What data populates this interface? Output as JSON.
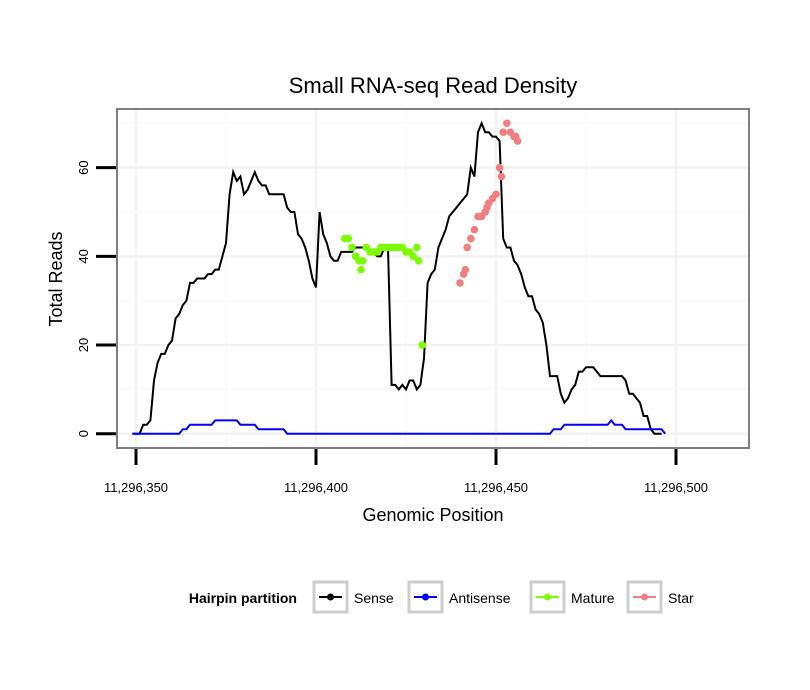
{
  "chart_data": {
    "type": "line",
    "title": "Small RNA-seq Read Density",
    "xlabel": "Genomic Position",
    "ylabel": "Total Reads",
    "xlim": [
      11296345,
      11296520
    ],
    "ylim": [
      -3,
      73
    ],
    "x_ticks": [
      11296350,
      11296400,
      11296450,
      11296500
    ],
    "x_tick_labels": [
      "11,296,350",
      "11,296,400",
      "11,296,450",
      "11,296,500"
    ],
    "y_ticks": [
      0,
      20,
      40,
      60
    ],
    "y_tick_labels": [
      "0",
      "20",
      "40",
      "60"
    ],
    "grid": true,
    "legend": {
      "title": "Hairpin partition",
      "position": "bottom",
      "entries": [
        {
          "name": "Sense",
          "color": "#000000"
        },
        {
          "name": "Antisense",
          "color": "#0000ff"
        },
        {
          "name": "Mature",
          "color": "#7cfc00"
        },
        {
          "name": "Star",
          "color": "#f08080"
        }
      ]
    },
    "series": [
      {
        "name": "Sense",
        "color": "#000000",
        "style": "line",
        "points": [
          [
            11296349,
            0
          ],
          [
            11296351,
            0
          ],
          [
            11296352,
            2
          ],
          [
            11296353,
            2
          ],
          [
            11296354,
            3
          ],
          [
            11296355,
            12
          ],
          [
            11296356,
            16
          ],
          [
            11296357,
            18
          ],
          [
            11296358,
            18
          ],
          [
            11296359,
            20
          ],
          [
            11296360,
            21
          ],
          [
            11296361,
            26
          ],
          [
            11296362,
            27
          ],
          [
            11296363,
            29
          ],
          [
            11296364,
            30
          ],
          [
            11296365,
            34
          ],
          [
            11296366,
            34
          ],
          [
            11296367,
            35
          ],
          [
            11296368,
            35
          ],
          [
            11296369,
            35
          ],
          [
            11296370,
            36
          ],
          [
            11296371,
            36
          ],
          [
            11296372,
            37
          ],
          [
            11296373,
            37
          ],
          [
            11296374,
            40
          ],
          [
            11296375,
            43
          ],
          [
            11296376,
            54
          ],
          [
            11296377,
            59
          ],
          [
            11296378,
            57
          ],
          [
            11296379,
            58
          ],
          [
            11296380,
            54
          ],
          [
            11296381,
            55
          ],
          [
            11296382,
            57
          ],
          [
            11296383,
            59
          ],
          [
            11296384,
            57
          ],
          [
            11296385,
            56
          ],
          [
            11296386,
            56
          ],
          [
            11296387,
            54
          ],
          [
            11296388,
            54
          ],
          [
            11296389,
            54
          ],
          [
            11296390,
            54
          ],
          [
            11296391,
            54
          ],
          [
            11296392,
            51
          ],
          [
            11296393,
            50
          ],
          [
            11296394,
            50
          ],
          [
            11296395,
            45
          ],
          [
            11296396,
            44
          ],
          [
            11296397,
            42
          ],
          [
            11296398,
            39
          ],
          [
            11296399,
            35
          ],
          [
            11296400,
            33
          ],
          [
            11296401,
            50
          ],
          [
            11296402,
            45
          ],
          [
            11296403,
            43
          ],
          [
            11296404,
            40
          ],
          [
            11296405,
            39
          ],
          [
            11296406,
            39
          ],
          [
            11296407,
            41
          ],
          [
            11296408,
            41
          ],
          [
            11296409,
            41
          ],
          [
            11296410,
            41
          ],
          [
            11296411,
            42
          ],
          [
            11296412,
            42
          ],
          [
            11296413,
            42
          ],
          [
            11296414,
            42
          ],
          [
            11296415,
            41
          ],
          [
            11296416,
            41
          ],
          [
            11296417,
            40
          ],
          [
            11296418,
            40
          ],
          [
            11296419,
            42
          ],
          [
            11296420,
            42
          ],
          [
            11296421,
            11
          ],
          [
            11296422,
            11
          ],
          [
            11296423,
            10
          ],
          [
            11296424,
            11
          ],
          [
            11296425,
            10
          ],
          [
            11296426,
            12
          ],
          [
            11296427,
            12
          ],
          [
            11296428,
            10
          ],
          [
            11296429,
            11
          ],
          [
            11296430,
            17
          ],
          [
            11296431,
            34
          ],
          [
            11296432,
            36
          ],
          [
            11296433,
            37
          ],
          [
            11296434,
            42
          ],
          [
            11296435,
            44
          ],
          [
            11296436,
            46
          ],
          [
            11296437,
            49
          ],
          [
            11296438,
            50
          ],
          [
            11296439,
            51
          ],
          [
            11296440,
            52
          ],
          [
            11296441,
            53
          ],
          [
            11296442,
            54
          ],
          [
            11296443,
            60
          ],
          [
            11296444,
            58
          ],
          [
            11296445,
            68
          ],
          [
            11296446,
            70
          ],
          [
            11296447,
            68
          ],
          [
            11296448,
            68
          ],
          [
            11296449,
            67
          ],
          [
            11296450,
            67
          ],
          [
            11296451,
            66
          ],
          [
            11296452,
            44
          ],
          [
            11296453,
            42
          ],
          [
            11296454,
            42
          ],
          [
            11296455,
            39
          ],
          [
            11296456,
            38
          ],
          [
            11296457,
            36
          ],
          [
            11296458,
            33
          ],
          [
            11296459,
            31
          ],
          [
            11296460,
            31
          ],
          [
            11296461,
            28
          ],
          [
            11296462,
            27
          ],
          [
            11296463,
            25
          ],
          [
            11296464,
            20
          ],
          [
            11296465,
            13
          ],
          [
            11296466,
            13
          ],
          [
            11296467,
            13
          ],
          [
            11296468,
            9
          ],
          [
            11296469,
            7
          ],
          [
            11296470,
            8
          ],
          [
            11296471,
            10
          ],
          [
            11296472,
            11
          ],
          [
            11296473,
            14
          ],
          [
            11296474,
            14
          ],
          [
            11296475,
            15
          ],
          [
            11296476,
            15
          ],
          [
            11296477,
            15
          ],
          [
            11296478,
            14
          ],
          [
            11296479,
            13
          ],
          [
            11296480,
            13
          ],
          [
            11296481,
            13
          ],
          [
            11296482,
            13
          ],
          [
            11296483,
            13
          ],
          [
            11296484,
            13
          ],
          [
            11296485,
            13
          ],
          [
            11296486,
            12
          ],
          [
            11296487,
            9
          ],
          [
            11296488,
            9
          ],
          [
            11296489,
            8
          ],
          [
            11296490,
            7
          ],
          [
            11296491,
            4
          ],
          [
            11296492,
            4
          ],
          [
            11296493,
            1
          ],
          [
            11296494,
            0
          ],
          [
            11296496,
            0
          ]
        ]
      },
      {
        "name": "Antisense",
        "color": "#0000ff",
        "style": "line",
        "points": [
          [
            11296349,
            0
          ],
          [
            11296362,
            0
          ],
          [
            11296363,
            1
          ],
          [
            11296364,
            1
          ],
          [
            11296365,
            2
          ],
          [
            11296371,
            2
          ],
          [
            11296372,
            3
          ],
          [
            11296378,
            3
          ],
          [
            11296379,
            2
          ],
          [
            11296383,
            2
          ],
          [
            11296384,
            1
          ],
          [
            11296391,
            1
          ],
          [
            11296392,
            0
          ],
          [
            11296465,
            0
          ],
          [
            11296466,
            1
          ],
          [
            11296468,
            1
          ],
          [
            11296469,
            2
          ],
          [
            11296478,
            2
          ],
          [
            11296479,
            2
          ],
          [
            11296481,
            2
          ],
          [
            11296482,
            3
          ],
          [
            11296483,
            2
          ],
          [
            11296485,
            2
          ],
          [
            11296486,
            1
          ],
          [
            11296496,
            1
          ],
          [
            11296497,
            0
          ]
        ]
      },
      {
        "name": "Mature",
        "color": "#7cfc00",
        "style": "points",
        "points": [
          [
            11296408,
            44
          ],
          [
            11296409,
            44
          ],
          [
            11296410,
            42
          ],
          [
            11296411,
            40
          ],
          [
            11296412,
            39
          ],
          [
            11296412.5,
            37
          ],
          [
            11296413,
            39
          ],
          [
            11296414,
            42
          ],
          [
            11296415,
            41
          ],
          [
            11296416,
            41
          ],
          [
            11296417,
            41
          ],
          [
            11296418,
            42
          ],
          [
            11296419,
            42
          ],
          [
            11296420,
            42
          ],
          [
            11296421,
            42
          ],
          [
            11296422,
            42
          ],
          [
            11296423,
            42
          ],
          [
            11296424,
            42
          ],
          [
            11296425,
            41
          ],
          [
            11296426,
            41
          ],
          [
            11296427,
            40
          ],
          [
            11296428,
            42
          ],
          [
            11296428.5,
            39
          ],
          [
            11296429.5,
            20
          ]
        ]
      },
      {
        "name": "Star",
        "color": "#f08080",
        "style": "points",
        "points": [
          [
            11296440,
            34
          ],
          [
            11296441,
            36
          ],
          [
            11296441.5,
            37
          ],
          [
            11296442,
            42
          ],
          [
            11296443,
            44
          ],
          [
            11296444,
            46
          ],
          [
            11296445,
            49
          ],
          [
            11296446,
            49
          ],
          [
            11296447,
            50
          ],
          [
            11296447.5,
            51
          ],
          [
            11296448,
            52
          ],
          [
            11296449,
            53
          ],
          [
            11296450,
            54
          ],
          [
            11296451,
            60
          ],
          [
            11296451.5,
            58
          ],
          [
            11296452,
            68
          ],
          [
            11296453,
            70
          ],
          [
            11296454,
            68
          ],
          [
            11296455,
            67
          ],
          [
            11296455.5,
            67
          ],
          [
            11296456,
            66
          ]
        ]
      }
    ]
  }
}
